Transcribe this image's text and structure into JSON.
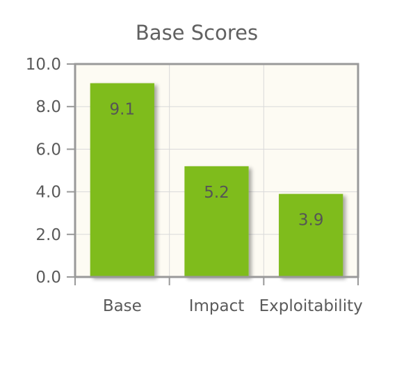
{
  "chart_data": {
    "type": "bar",
    "title": "Base Scores",
    "xlabel": "",
    "ylabel": "",
    "categories": [
      "Base",
      "Impact",
      "Exploitability"
    ],
    "values": [
      9.1,
      5.2,
      3.9
    ],
    "value_labels": [
      "9.1",
      "5.2",
      "3.9"
    ],
    "ylim": [
      0,
      10
    ],
    "yticks": [
      0,
      2,
      4,
      6,
      8,
      10
    ],
    "ytick_labels": [
      "0.0",
      "2.0",
      "4.0",
      "6.0",
      "8.0",
      "10.0"
    ],
    "grid": true,
    "legend": "none",
    "colors": {
      "bar": "#7fbc1c",
      "plot_background": "#fdfbf3",
      "grid": "#d9d9d9",
      "axis": "#999999",
      "text": "#5a5a5a"
    }
  }
}
